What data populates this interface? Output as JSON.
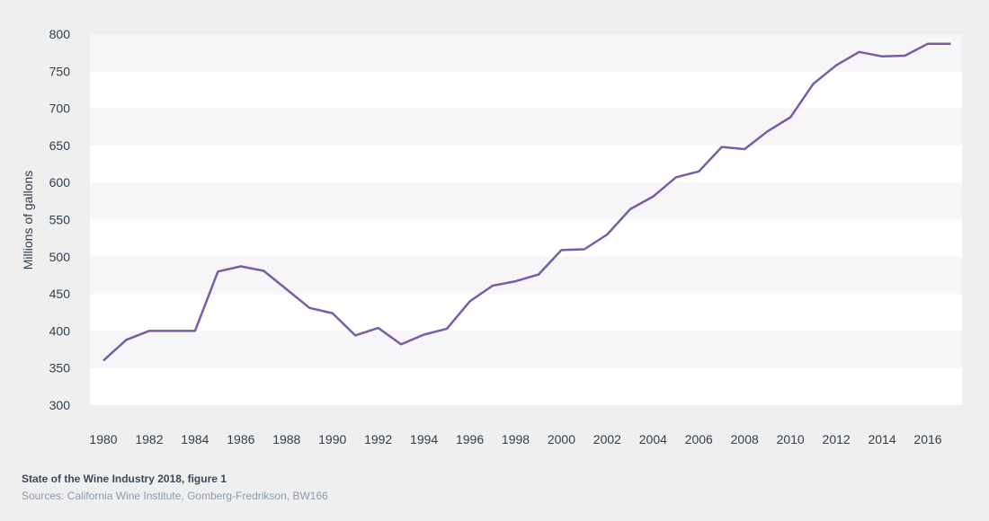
{
  "chart_data": {
    "type": "line",
    "title": "",
    "xlabel": "",
    "ylabel": "Millions of gallons",
    "ylim": [
      300,
      800
    ],
    "yticks": [
      300,
      350,
      400,
      450,
      500,
      550,
      600,
      650,
      700,
      750,
      800
    ],
    "xlim": [
      1980,
      2017
    ],
    "xticks": [
      1980,
      1982,
      1984,
      1986,
      1988,
      1990,
      1992,
      1994,
      1996,
      1998,
      2000,
      2002,
      2004,
      2006,
      2008,
      2010,
      2012,
      2014,
      2016
    ],
    "grid": "alternating horizontal bands",
    "legend": "none",
    "line_color": "#7a5ba8",
    "series": [
      {
        "x": [
          1980,
          1981,
          1982,
          1983,
          1984,
          1985,
          1986,
          1987,
          1988,
          1989,
          1990,
          1991,
          1992,
          1993,
          1994,
          1995,
          1996,
          1997,
          1998,
          1999,
          2000,
          2001,
          2002,
          2003,
          2004,
          2005,
          2006,
          2007,
          2008,
          2009,
          2010,
          2011,
          2012,
          2013,
          2014,
          2015,
          2016,
          2017
        ],
        "values": [
          360,
          388,
          400,
          400,
          400,
          480,
          487,
          481,
          456,
          431,
          424,
          394,
          404,
          382,
          395,
          403,
          440,
          461,
          467,
          476,
          509,
          510,
          530,
          564,
          581,
          607,
          615,
          648,
          645,
          669,
          688,
          733,
          758,
          776,
          770,
          771,
          787,
          787
        ]
      }
    ]
  },
  "caption": {
    "title": "State of the Wine Industry 2018, figure 1",
    "source": "Sources: California Wine Institute, Gomberg-Fredrikson, BW166"
  }
}
